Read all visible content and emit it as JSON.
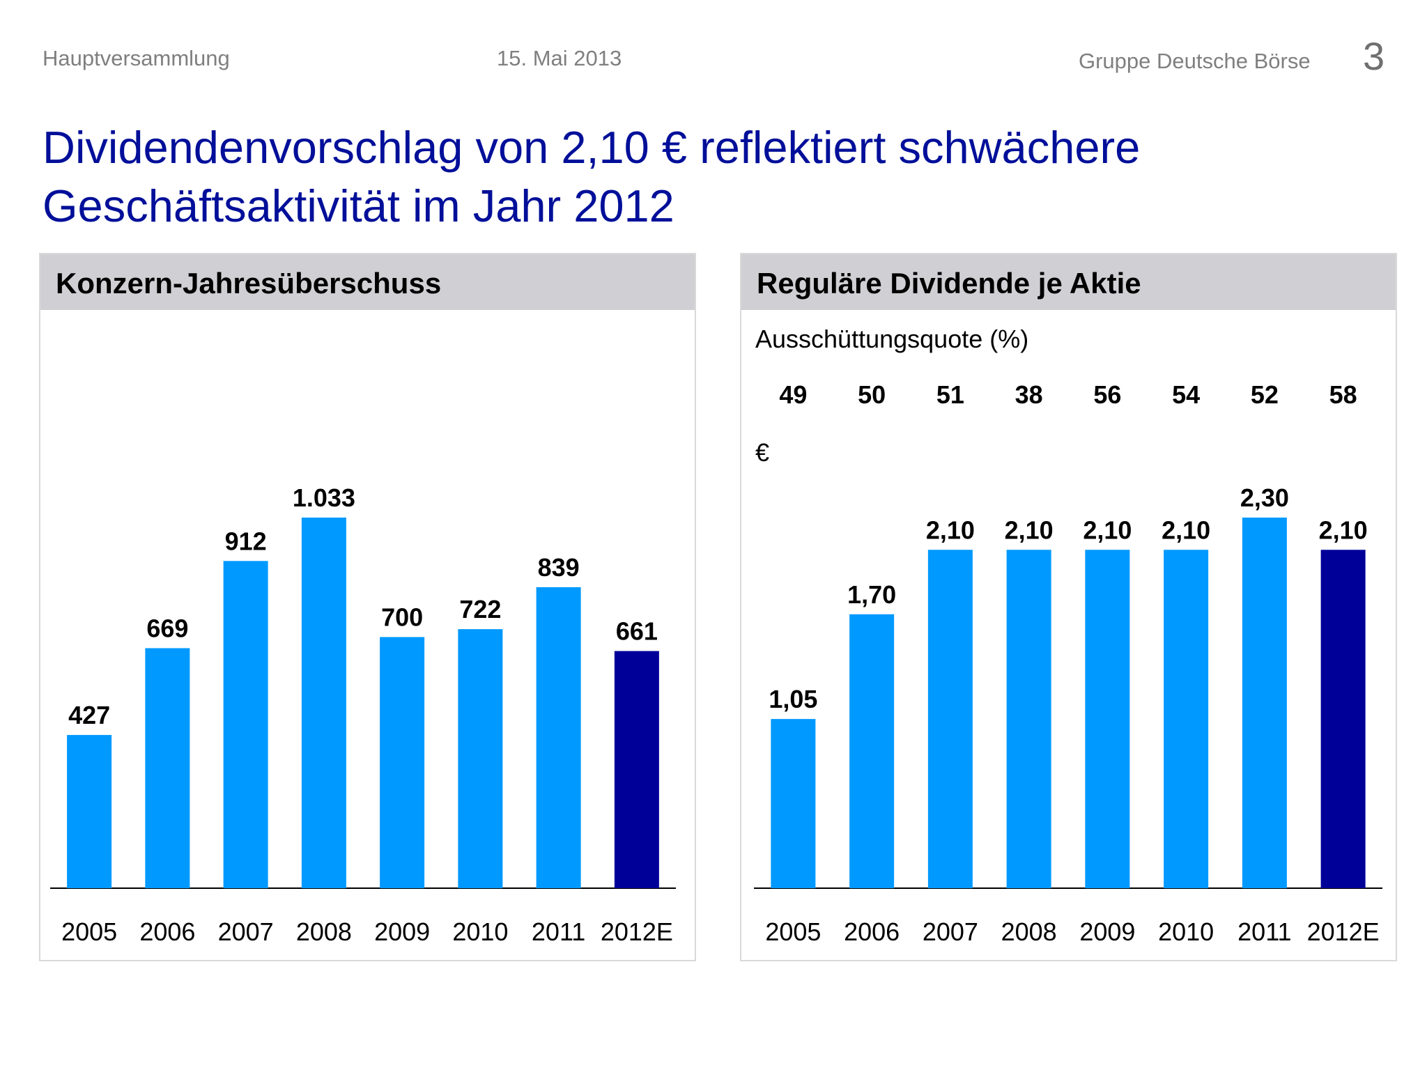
{
  "header": {
    "left": "Hauptversammlung",
    "date": "15. Mai 2013",
    "org": "Gruppe Deutsche Börse",
    "page": "3"
  },
  "title_line1": "Dividendenvorschlag von 2,10 € reflektiert schwächere",
  "title_line2": "Geschäftsaktivität im Jahr 2012",
  "colors": {
    "bar": "#0099ff",
    "bar_highlight": "#000099",
    "title": "#000f99",
    "panel_header": "#d0cfd3"
  },
  "chart_data": [
    {
      "type": "bar",
      "title": "Konzern-Jahresüberschuss",
      "categories": [
        "2005",
        "2006",
        "2007",
        "2008",
        "2009",
        "2010",
        "2011",
        "2012E"
      ],
      "values": [
        427,
        669,
        912,
        1033,
        700,
        722,
        839,
        661
      ],
      "value_labels": [
        "427",
        "669",
        "912",
        "1.033",
        "700",
        "722",
        "839",
        "661"
      ],
      "highlight_index": 7,
      "ylim": [
        0,
        1033
      ]
    },
    {
      "type": "bar",
      "title": "Reguläre Dividende je Aktie",
      "subtitle": "Ausschüttungsquote (%)",
      "unit_label": "€",
      "categories": [
        "2005",
        "2006",
        "2007",
        "2008",
        "2009",
        "2010",
        "2011",
        "2012E"
      ],
      "values": [
        1.05,
        1.7,
        2.1,
        2.1,
        2.1,
        2.1,
        2.3,
        2.1
      ],
      "value_labels": [
        "1,05",
        "1,70",
        "2,10",
        "2,10",
        "2,10",
        "2,10",
        "2,30",
        "2,10"
      ],
      "payout_ratio": [
        "49",
        "50",
        "51",
        "38",
        "56",
        "54",
        "52",
        "58"
      ],
      "highlight_index": 7,
      "ylim": [
        0,
        2.3
      ]
    }
  ]
}
